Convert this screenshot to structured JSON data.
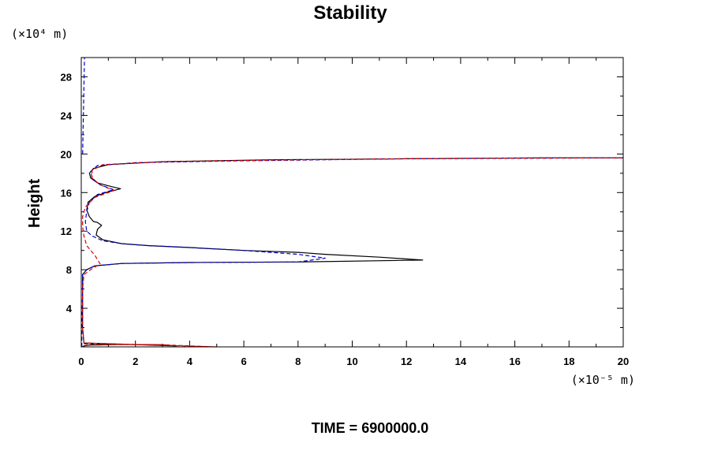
{
  "chart_data": {
    "type": "line",
    "title": "Stability",
    "ylabel": "Height",
    "y_unit": "(×10⁴ m)",
    "x_unit": "(×10⁻⁵ m)",
    "footer": "TIME = 6900000.0",
    "xlim": [
      0,
      20
    ],
    "ylim": [
      0,
      30
    ],
    "x_ticks": [
      0,
      2,
      4,
      6,
      8,
      10,
      12,
      14,
      16,
      18,
      20
    ],
    "y_ticks": [
      4,
      8,
      12,
      16,
      20,
      24,
      28
    ],
    "series": [
      {
        "color": "#000000",
        "dash": "solid",
        "points": [
          [
            0.05,
            0
          ],
          [
            0.1,
            0.1
          ],
          [
            0.3,
            0.2
          ],
          [
            1.5,
            0.25
          ],
          [
            3,
            0.22
          ],
          [
            3.5,
            0.1
          ],
          [
            0.1,
            0.4
          ],
          [
            0.05,
            2
          ],
          [
            0.05,
            6
          ],
          [
            0.05,
            7.5
          ],
          [
            0.2,
            8
          ],
          [
            0.5,
            8.4
          ],
          [
            1.5,
            8.65
          ],
          [
            4,
            8.75
          ],
          [
            8,
            8.8
          ],
          [
            12.6,
            9
          ],
          [
            11,
            9.3
          ],
          [
            9,
            9.6
          ],
          [
            8,
            9.8
          ],
          [
            6,
            10
          ],
          [
            4,
            10.3
          ],
          [
            2.5,
            10.5
          ],
          [
            1.5,
            10.7
          ],
          [
            0.8,
            11.1
          ],
          [
            0.55,
            11.6
          ],
          [
            0.6,
            12.2
          ],
          [
            0.75,
            12.6
          ],
          [
            0.6,
            12.9
          ],
          [
            0.45,
            13
          ],
          [
            0.3,
            13.5
          ],
          [
            0.2,
            14.2
          ],
          [
            0.25,
            15
          ],
          [
            0.5,
            15.6
          ],
          [
            0.9,
            16
          ],
          [
            1.45,
            16.4
          ],
          [
            1,
            16.7
          ],
          [
            0.6,
            17
          ],
          [
            0.35,
            17.5
          ],
          [
            0.3,
            18
          ],
          [
            0.45,
            18.5
          ],
          [
            1,
            18.9
          ],
          [
            3,
            19.2
          ],
          [
            7,
            19.4
          ],
          [
            12,
            19.5
          ],
          [
            17,
            19.6
          ],
          [
            20,
            19.6
          ]
        ]
      },
      {
        "color": "#0000cc",
        "dash": "dashed",
        "points": [
          [
            0.02,
            0
          ],
          [
            0.02,
            2
          ],
          [
            0.05,
            6
          ],
          [
            0.05,
            7.5
          ],
          [
            0.2,
            8
          ],
          [
            0.5,
            8.4
          ],
          [
            1.5,
            8.65
          ],
          [
            4,
            8.75
          ],
          [
            8,
            8.8
          ],
          [
            9,
            9.2
          ],
          [
            8,
            9.6
          ],
          [
            6,
            10
          ],
          [
            4,
            10.3
          ],
          [
            2.5,
            10.5
          ],
          [
            1.5,
            10.7
          ],
          [
            0.8,
            11
          ],
          [
            0.4,
            11.5
          ],
          [
            0.2,
            12
          ],
          [
            0.15,
            13
          ],
          [
            0.2,
            14
          ],
          [
            0.3,
            15
          ],
          [
            0.6,
            15.8
          ],
          [
            1.2,
            16.3
          ],
          [
            0.7,
            16.8
          ],
          [
            0.4,
            17.5
          ],
          [
            0.35,
            18.2
          ],
          [
            0.6,
            18.8
          ],
          [
            2,
            19.1
          ],
          [
            6,
            19.3
          ],
          [
            12,
            19.5
          ],
          [
            20,
            19.6
          ]
        ]
      },
      {
        "color": "#0000cc",
        "dash": "dashed",
        "points": [
          [
            0.05,
            20
          ],
          [
            0.08,
            24
          ],
          [
            0.1,
            27
          ],
          [
            0.12,
            30
          ]
        ]
      },
      {
        "color": "#e00000",
        "dash": "dashed",
        "points": [
          [
            0.1,
            0.3
          ],
          [
            1.5,
            0.25
          ],
          [
            3,
            0.22
          ],
          [
            4,
            0.1
          ],
          [
            5,
            0
          ],
          [
            0.1,
            0.4
          ],
          [
            0.05,
            2
          ],
          [
            0.05,
            6
          ],
          [
            0.1,
            7.5
          ],
          [
            0.4,
            8.1
          ],
          [
            0.7,
            8.6
          ],
          [
            0.5,
            9.5
          ],
          [
            0.2,
            10.5
          ],
          [
            0.1,
            11.5
          ],
          [
            0.05,
            12.5
          ],
          [
            0.05,
            13.5
          ],
          [
            0.15,
            14.5
          ],
          [
            0.5,
            15.5
          ],
          [
            1.2,
            16.2
          ],
          [
            0.7,
            16.8
          ],
          [
            0.4,
            17.5
          ],
          [
            0.4,
            18.3
          ],
          [
            0.8,
            18.9
          ],
          [
            3,
            19.2
          ],
          [
            8,
            19.4
          ],
          [
            14,
            19.55
          ],
          [
            20,
            19.6
          ]
        ]
      }
    ]
  }
}
